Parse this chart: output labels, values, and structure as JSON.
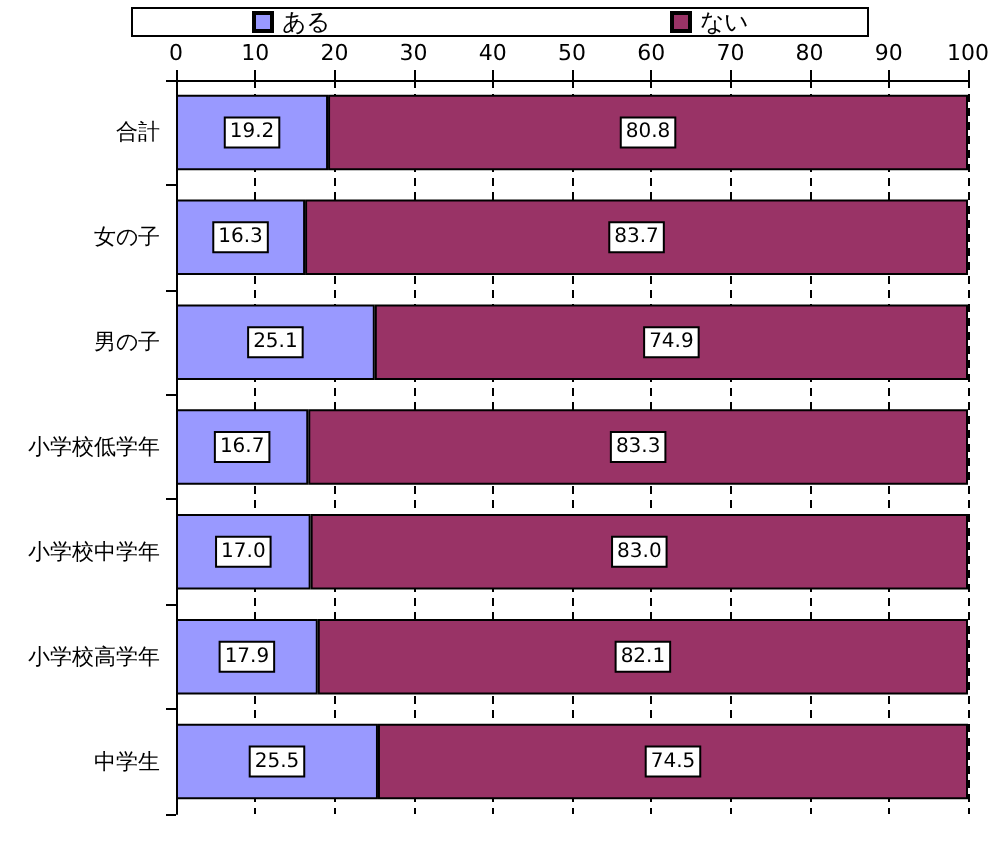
{
  "chart_data": {
    "type": "bar",
    "orientation": "horizontal",
    "stacked": true,
    "categories": [
      "合計",
      "女の子",
      "男の子",
      "小学校低学年",
      "小学校中学年",
      "小学校高学年",
      "中学生"
    ],
    "series": [
      {
        "name": "ある",
        "color": "#9999ff",
        "values": [
          19.2,
          16.3,
          25.1,
          16.7,
          17.0,
          17.9,
          25.5
        ]
      },
      {
        "name": "ない",
        "color": "#993366",
        "values": [
          80.8,
          83.7,
          74.9,
          83.3,
          83.0,
          82.1,
          74.5
        ]
      }
    ],
    "value_labels": [
      [
        "19.2",
        "16.3",
        "25.1",
        "16.7",
        "17.0",
        "17.9",
        "25.5"
      ],
      [
        "80.8",
        "83.7",
        "74.9",
        "83.3",
        "83.0",
        "82.1",
        "74.5"
      ]
    ],
    "xlim": [
      0,
      100
    ],
    "xticks": [
      0,
      10,
      20,
      30,
      40,
      50,
      60,
      70,
      80,
      90,
      100
    ],
    "grid": "x",
    "legend": "top"
  }
}
